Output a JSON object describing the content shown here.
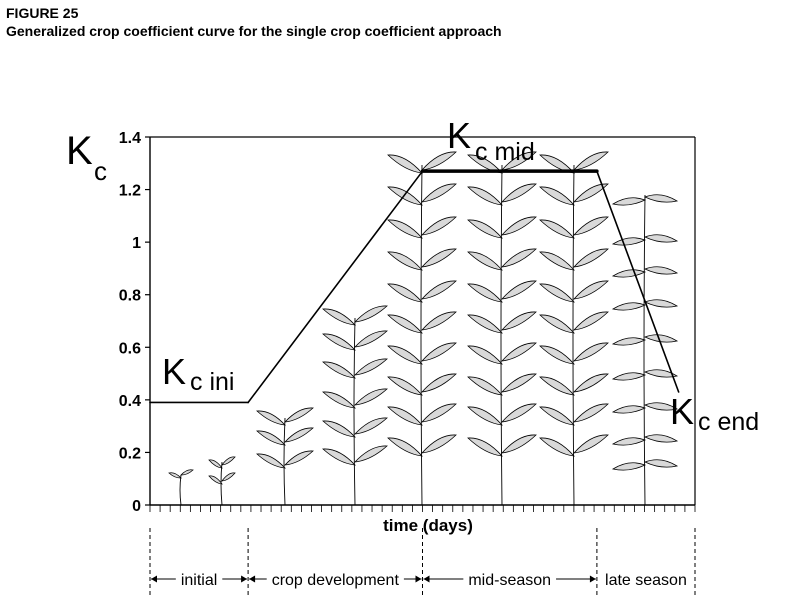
{
  "figure": {
    "label": "FIGURE 25",
    "title": "Generalized crop coefficient curve for the single crop coefficient approach"
  },
  "chart_data": {
    "type": "line",
    "title": "Generalized crop coefficient curve for the single crop coefficient approach",
    "ylabel": {
      "main": "K",
      "sub": "c"
    },
    "xlabel": "time (days)",
    "ylim": [
      0,
      1.4
    ],
    "yticks": [
      {
        "value": 0,
        "label": "0"
      },
      {
        "value": 0.2,
        "label": "0.2"
      },
      {
        "value": 0.4,
        "label": "0.4"
      },
      {
        "value": 0.6,
        "label": "0.6"
      },
      {
        "value": 0.8,
        "label": "0.8"
      },
      {
        "value": 1.0,
        "label": "1"
      },
      {
        "value": 1.2,
        "label": "1.2"
      },
      {
        "value": 1.4,
        "label": "1.4"
      }
    ],
    "xlim": [
      0,
      100
    ],
    "series": [
      {
        "points": [
          {
            "x": 0,
            "y": 0.39
          },
          {
            "x": 18,
            "y": 0.39
          },
          {
            "x": 50,
            "y": 1.27
          },
          {
            "x": 82,
            "y": 1.27
          },
          {
            "x": 97,
            "y": 0.43
          }
        ],
        "highlight_segment": [
          50,
          82
        ]
      }
    ],
    "annotations": [
      {
        "main": "K",
        "sub": "c ini"
      },
      {
        "main": "K",
        "sub": "c mid"
      },
      {
        "main": "K",
        "sub": "c end"
      }
    ],
    "stages": [
      {
        "label": "initial",
        "start": 0,
        "end": 18
      },
      {
        "label": "crop development",
        "start": 18,
        "end": 50
      },
      {
        "label": "mid-season",
        "start": 50,
        "end": 82
      },
      {
        "label": "late season",
        "start": 82,
        "end": 100
      }
    ],
    "grid": false
  }
}
